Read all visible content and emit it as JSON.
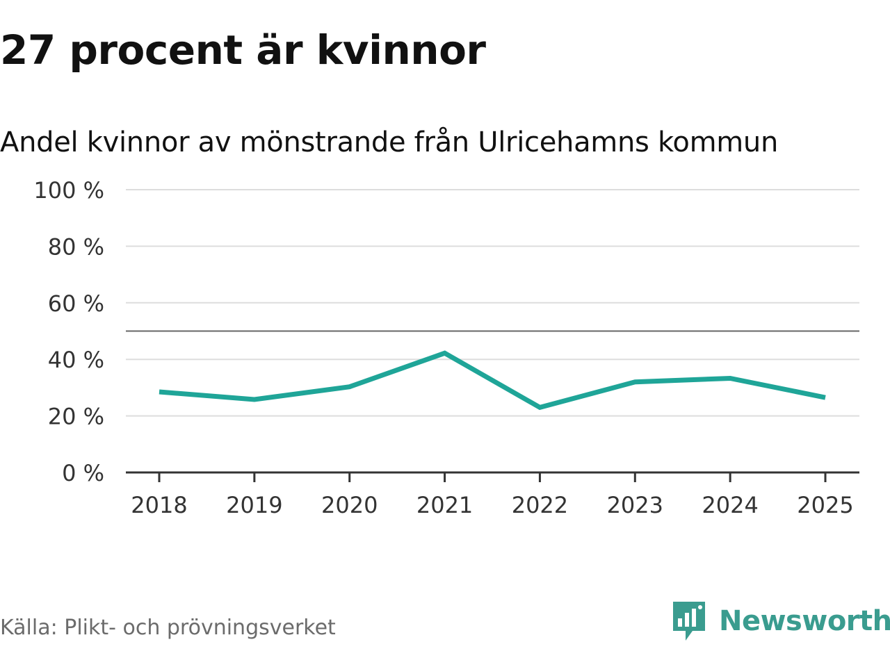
{
  "title": "27 procent är kvinnor",
  "subtitle": "Andel kvinnor av mönstrande från Ulricehamns kommun",
  "source": "Källa: Plikt- och prövningsverket",
  "brand": {
    "name": "Newsworthy",
    "icon": "newsworthy-logo-icon",
    "color": "#3a9c8f"
  },
  "chart_data": {
    "type": "line",
    "x": [
      "2018",
      "2019",
      "2020",
      "2021",
      "2022",
      "2023",
      "2024",
      "2025"
    ],
    "series": [
      {
        "values": [
          28.5,
          25.8,
          30.3,
          42.2,
          23.0,
          32.0,
          33.3,
          26.5
        ],
        "color": "#1fa598"
      }
    ],
    "y_ticks": [
      0,
      20,
      40,
      60,
      80,
      100
    ],
    "y_tick_labels": [
      "0 %",
      "20 %",
      "40 %",
      "60 %",
      "80 %",
      "100 %"
    ],
    "reference_line": 50,
    "ylim": [
      0,
      100
    ],
    "grid": true,
    "xlabel": "",
    "ylabel": ""
  }
}
